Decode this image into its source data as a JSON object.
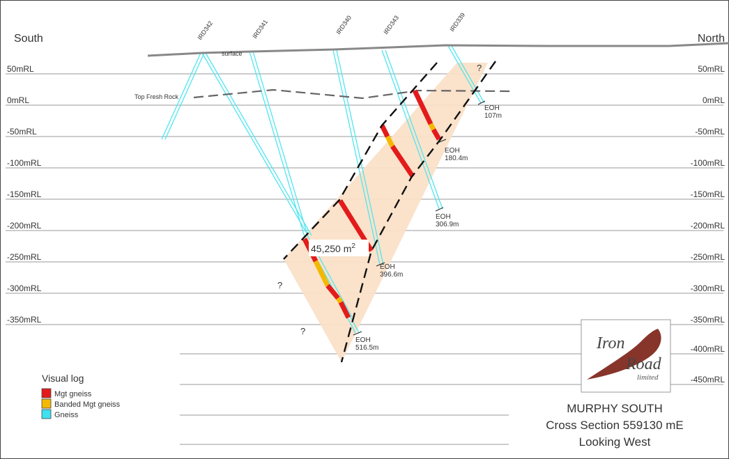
{
  "directions": {
    "left": "South",
    "right": "North"
  },
  "rl_levels": {
    "left": [
      "50mRL",
      "0mRL",
      "-50mRL",
      "-100mRL",
      "-150mRL",
      "-200mRL",
      "-250mRL",
      "-300mRL",
      "-350mRL"
    ],
    "right": [
      "50mRL",
      "0mRL",
      "-50mRL",
      "-100mRL",
      "-150mRL",
      "-200mRL",
      "-250mRL",
      "-300mRL",
      "-350mRL",
      "-400mRL",
      "-450mRL"
    ]
  },
  "surface_label": "surface",
  "fresh_rock_label": "Top Fresh Rock",
  "holes": [
    {
      "id": "IRD342"
    },
    {
      "id": "IRD341"
    },
    {
      "id": "IRD340",
      "eoh_label": "EOH",
      "eoh_depth": "396.6m"
    },
    {
      "id": "IRD343",
      "eoh_label": "EOH",
      "eoh_depth": "180.4m"
    },
    {
      "id": "IRD339",
      "eoh_label": "EOH",
      "eoh_depth": "107m"
    }
  ],
  "extra_eoh": [
    {
      "label": "EOH",
      "depth": "306.9m"
    },
    {
      "label": "EOH",
      "depth": "516.5m"
    }
  ],
  "question_marks": [
    "?",
    "?",
    "?"
  ],
  "area_label": {
    "value": "45,250 m",
    "sup": "2"
  },
  "legend": {
    "title": "Visual log",
    "items": [
      {
        "label": "Mgt gneiss",
        "color": "#e31b1b"
      },
      {
        "label": "Banded Mgt gneiss",
        "color": "#f5b800"
      },
      {
        "label": "Gneiss",
        "color": "#3fe0ef"
      }
    ]
  },
  "logo": {
    "line1": "Iron",
    "line2": "Road",
    "line3": "limited"
  },
  "title": {
    "line1": "MURPHY SOUTH",
    "line2": "Cross Section  559130 mE",
    "line3": "Looking West"
  },
  "colors": {
    "zone_fill": "#fbe0c8",
    "hole": "#4fe6ef",
    "mgt": "#e31b1b",
    "banded": "#f5b800",
    "surface": "#888888",
    "fault": "#111111"
  }
}
